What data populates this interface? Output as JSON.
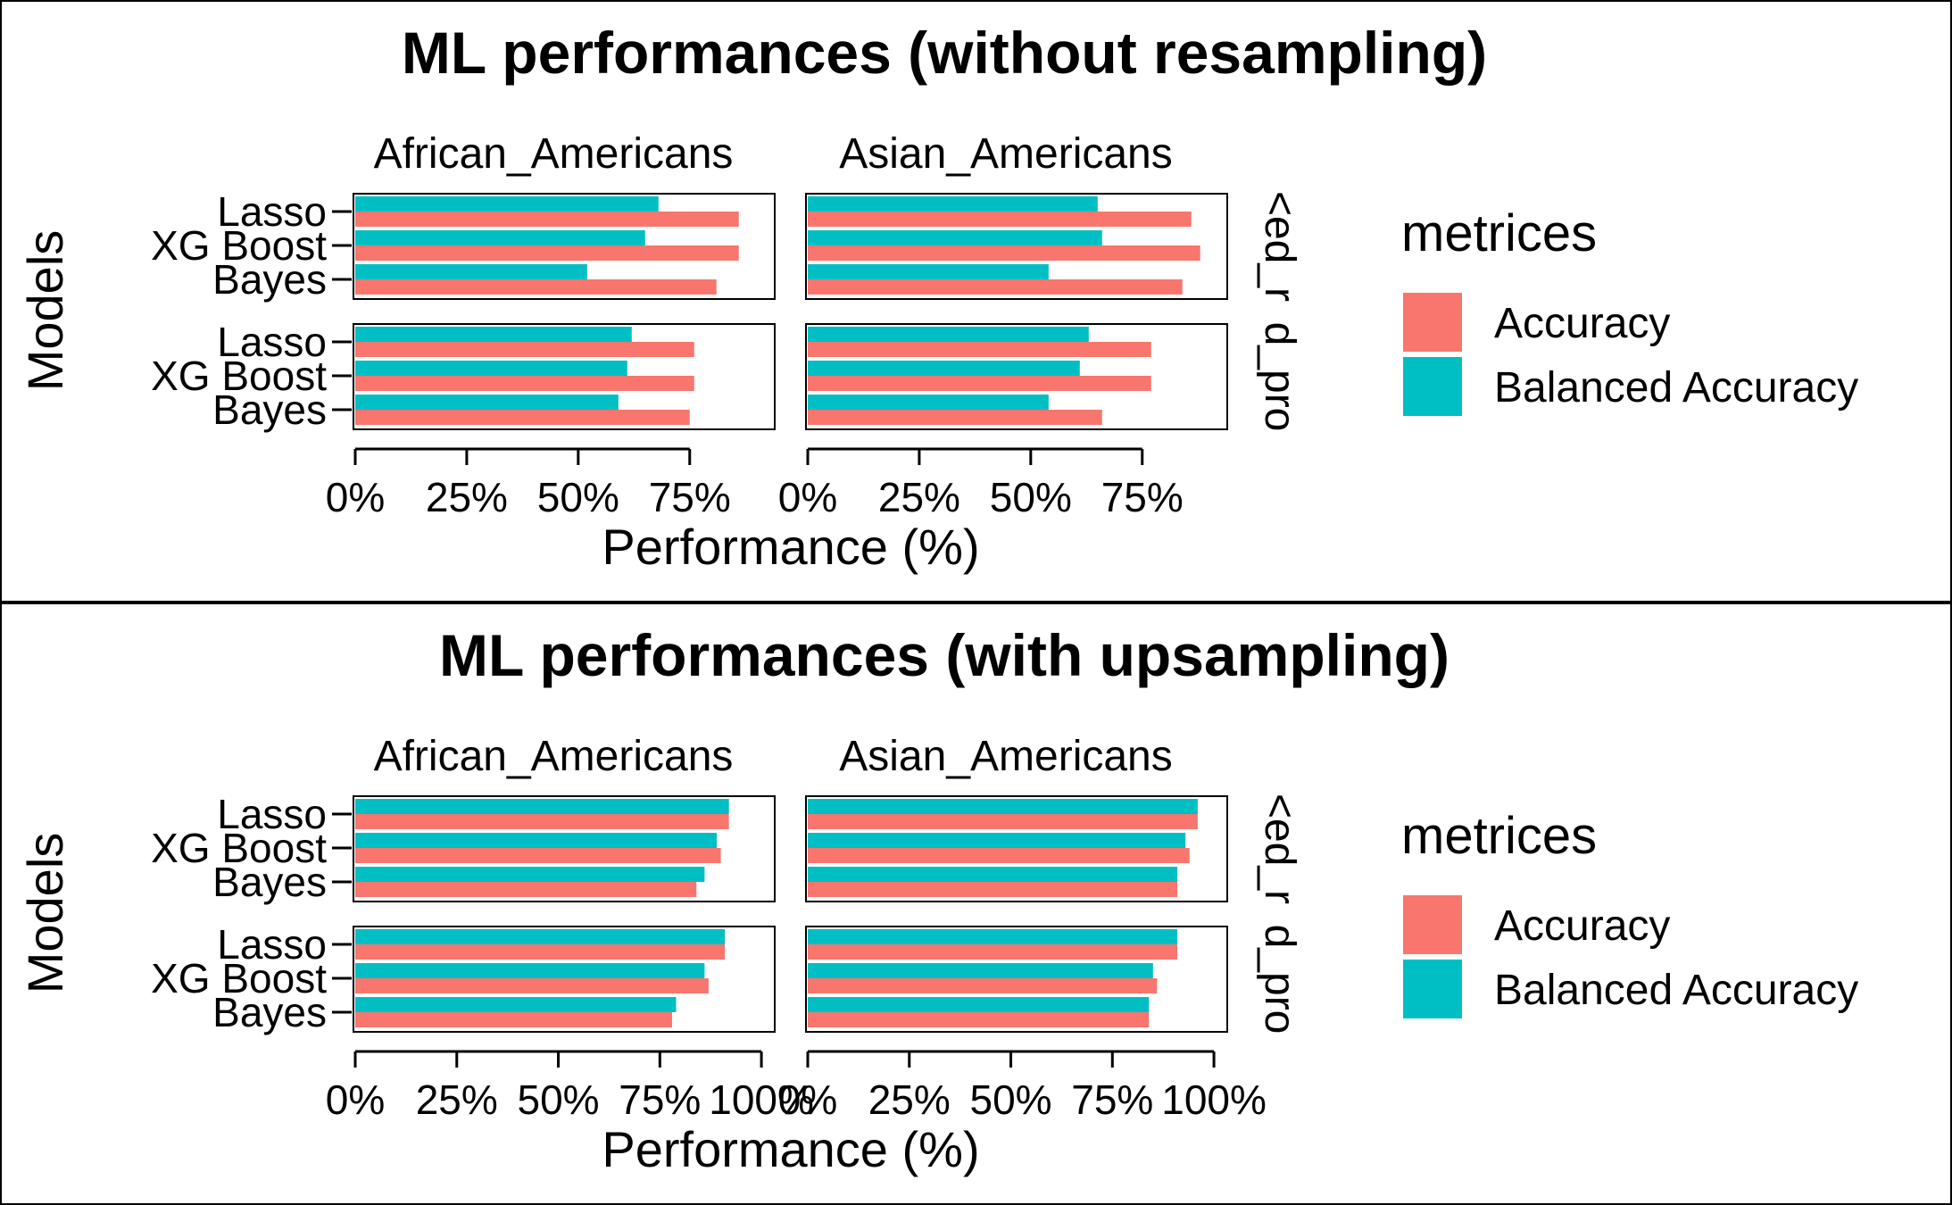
{
  "colors": {
    "accuracy": "#F8766D",
    "balanced": "#00BFC4",
    "frame": "#000000",
    "background": "#FFFFFF"
  },
  "chart_data": [
    {
      "type": "bar",
      "orientation": "horizontal",
      "title": "ML performances (without resampling)",
      "xlabel": "Performance (%)",
      "ylabel": "Models",
      "xlim": [
        0,
        0.92
      ],
      "xticks": [
        "0%",
        "25%",
        "50%",
        "75%"
      ],
      "xtick_values": [
        0,
        0.25,
        0.5,
        0.75
      ],
      "facet_columns": [
        "African_Americans",
        "Asian_Americans"
      ],
      "facet_rows": [
        "<ed_r",
        "d_pro"
      ],
      "categories": [
        "Lasso",
        "XG Boost",
        "Bayes"
      ],
      "legend": {
        "title": "metrices",
        "items": [
          "Accuracy",
          "Balanced Accuracy"
        ],
        "position": "right"
      },
      "panels": [
        {
          "column": "African_Americans",
          "row": 0,
          "series": [
            {
              "name": "Accuracy",
              "values": [
                0.86,
                0.86,
                0.81
              ]
            },
            {
              "name": "Balanced Accuracy",
              "values": [
                0.68,
                0.65,
                0.52
              ]
            }
          ]
        },
        {
          "column": "Asian_Americans",
          "row": 0,
          "series": [
            {
              "name": "Accuracy",
              "values": [
                0.86,
                0.88,
                0.84
              ]
            },
            {
              "name": "Balanced Accuracy",
              "values": [
                0.65,
                0.66,
                0.54
              ]
            }
          ]
        },
        {
          "column": "African_Americans",
          "row": 1,
          "series": [
            {
              "name": "Accuracy",
              "values": [
                0.76,
                0.76,
                0.75
              ]
            },
            {
              "name": "Balanced Accuracy",
              "values": [
                0.62,
                0.61,
                0.59
              ]
            }
          ]
        },
        {
          "column": "Asian_Americans",
          "row": 1,
          "series": [
            {
              "name": "Accuracy",
              "values": [
                0.77,
                0.77,
                0.66
              ]
            },
            {
              "name": "Balanced Accuracy",
              "values": [
                0.63,
                0.61,
                0.54
              ]
            }
          ]
        }
      ]
    },
    {
      "type": "bar",
      "orientation": "horizontal",
      "title": "ML performances (with upsampling)",
      "xlabel": "Performance (%)",
      "ylabel": "Models",
      "xlim": [
        0,
        1.0
      ],
      "xticks": [
        "0%",
        "25%",
        "50%",
        "75%",
        "100%"
      ],
      "xtick_values": [
        0,
        0.25,
        0.5,
        0.75,
        1.0
      ],
      "facet_columns": [
        "African_Americans",
        "Asian_Americans"
      ],
      "facet_rows": [
        "<ed_r",
        "d_pro"
      ],
      "categories": [
        "Lasso",
        "XG Boost",
        "Bayes"
      ],
      "legend": {
        "title": "metrices",
        "items": [
          "Accuracy",
          "Balanced Accuracy"
        ],
        "position": "right"
      },
      "panels": [
        {
          "column": "African_Americans",
          "row": 0,
          "series": [
            {
              "name": "Accuracy",
              "values": [
                0.92,
                0.9,
                0.84
              ]
            },
            {
              "name": "Balanced Accuracy",
              "values": [
                0.92,
                0.89,
                0.86
              ]
            }
          ]
        },
        {
          "column": "Asian_Americans",
          "row": 0,
          "series": [
            {
              "name": "Accuracy",
              "values": [
                0.96,
                0.94,
                0.91
              ]
            },
            {
              "name": "Balanced Accuracy",
              "values": [
                0.96,
                0.93,
                0.91
              ]
            }
          ]
        },
        {
          "column": "African_Americans",
          "row": 1,
          "series": [
            {
              "name": "Accuracy",
              "values": [
                0.91,
                0.87,
                0.78
              ]
            },
            {
              "name": "Balanced Accuracy",
              "values": [
                0.91,
                0.86,
                0.79
              ]
            }
          ]
        },
        {
          "column": "Asian_Americans",
          "row": 1,
          "series": [
            {
              "name": "Accuracy",
              "values": [
                0.91,
                0.86,
                0.84
              ]
            },
            {
              "name": "Balanced Accuracy",
              "values": [
                0.91,
                0.85,
                0.84
              ]
            }
          ]
        }
      ]
    }
  ]
}
